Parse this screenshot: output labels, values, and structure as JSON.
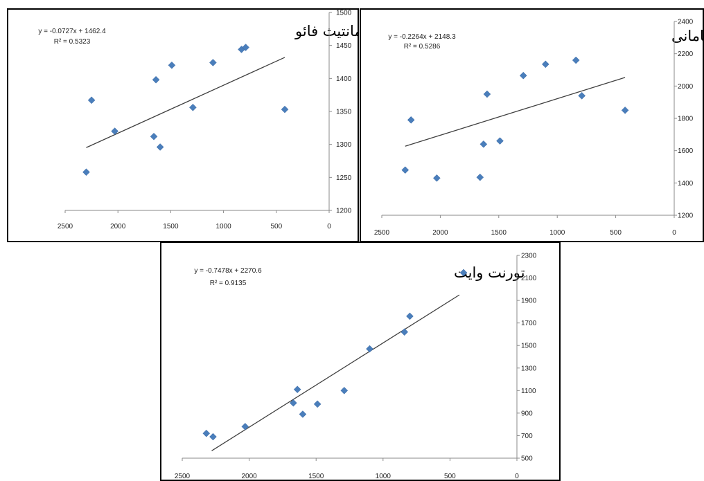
{
  "colors": {
    "marker": "#4a7ebb",
    "trendline": "#404040",
    "axis": "#8a8a8a",
    "border": "#000000"
  },
  "chart_data": [
    {
      "type": "scatter",
      "title": "پنمن مانتیث فائو",
      "equation": "y = -0.0727x + 1462.4",
      "r2": "R² = 0.5323",
      "x_reversed": true,
      "xlim": [
        0,
        2500
      ],
      "ylim": [
        1200,
        1500
      ],
      "x_ticks": [
        2500,
        2000,
        1500,
        1000,
        500,
        0
      ],
      "y_ticks": [
        1200,
        1250,
        1300,
        1350,
        1400,
        1450,
        1500
      ],
      "y_axis_side": "right",
      "trendline": {
        "slope": -0.0727,
        "intercept": 1462.4,
        "x_range": [
          420,
          2300
        ]
      },
      "points": [
        [
          2300,
          1258
        ],
        [
          2250,
          1367
        ],
        [
          2030,
          1320
        ],
        [
          1660,
          1312
        ],
        [
          1640,
          1398
        ],
        [
          1600,
          1296
        ],
        [
          1490,
          1420
        ],
        [
          1290,
          1356
        ],
        [
          1100,
          1424
        ],
        [
          830,
          1444
        ],
        [
          790,
          1447
        ],
        [
          420,
          1353
        ]
      ]
    },
    {
      "type": "scatter",
      "title": "هارگریوز سامانی",
      "equation": "y = -0.2264x + 2148.3",
      "r2": "R² = 0.5286",
      "x_reversed": true,
      "xlim": [
        0,
        2500
      ],
      "ylim": [
        1200,
        2400
      ],
      "x_ticks": [
        2500,
        2000,
        1500,
        1000,
        500,
        0
      ],
      "y_ticks": [
        1200,
        1400,
        1600,
        1800,
        2000,
        2200,
        2400
      ],
      "y_axis_side": "right",
      "trendline": {
        "slope": -0.2264,
        "intercept": 2148.3,
        "x_range": [
          420,
          2300
        ]
      },
      "points": [
        [
          2300,
          1480
        ],
        [
          2250,
          1790
        ],
        [
          2030,
          1430
        ],
        [
          1660,
          1435
        ],
        [
          1630,
          1640
        ],
        [
          1600,
          1950
        ],
        [
          1490,
          1660
        ],
        [
          1290,
          2065
        ],
        [
          1100,
          2135
        ],
        [
          840,
          2160
        ],
        [
          790,
          1940
        ],
        [
          420,
          1850
        ]
      ]
    },
    {
      "type": "scatter",
      "title": "تورنت وایت",
      "equation": "y = -0.7478x + 2270.6",
      "r2": "R² = 0.9135",
      "x_reversed": true,
      "xlim": [
        0,
        2500
      ],
      "ylim": [
        500,
        2300
      ],
      "x_ticks": [
        2500,
        2000,
        1500,
        1000,
        500,
        0
      ],
      "y_ticks": [
        500,
        700,
        900,
        1100,
        1300,
        1500,
        1700,
        1900,
        2100,
        2300
      ],
      "y_axis_side": "right",
      "trendline": {
        "slope": -0.7478,
        "intercept": 2270.6,
        "x_range": [
          430,
          2280
        ]
      },
      "points": [
        [
          2320,
          720
        ],
        [
          2270,
          690
        ],
        [
          2030,
          780
        ],
        [
          1670,
          990
        ],
        [
          1640,
          1110
        ],
        [
          1600,
          890
        ],
        [
          1490,
          980
        ],
        [
          1290,
          1100
        ],
        [
          1100,
          1470
        ],
        [
          840,
          1620
        ],
        [
          800,
          1760
        ]
      ]
    }
  ]
}
